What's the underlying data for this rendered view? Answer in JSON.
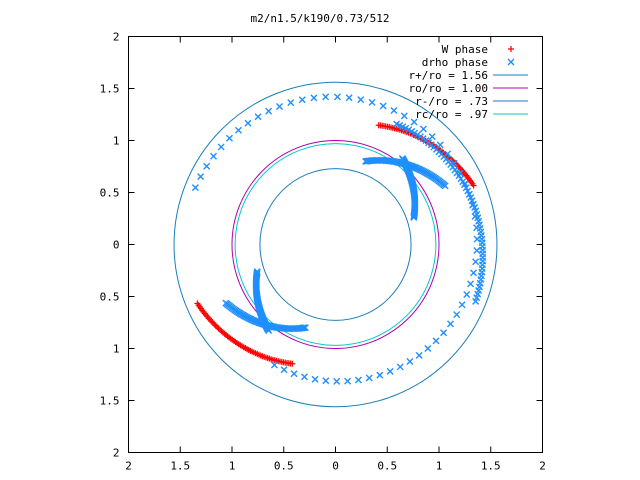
{
  "chart_data": {
    "type": "scatter",
    "title": "m2/n1.5/k190/0.73/512",
    "xlabel": "",
    "ylabel": "",
    "xlim": [
      -2,
      2
    ],
    "ylim": [
      -2,
      2
    ],
    "x_ticks": [
      -2,
      -1.5,
      -1,
      -0.5,
      0,
      0.5,
      1,
      1.5,
      2
    ],
    "y_ticks": [
      -2,
      -1.5,
      -1,
      -0.5,
      0,
      0.5,
      1,
      1.5,
      2
    ],
    "x_tick_labels": [
      "2",
      "1.5",
      "1",
      "0.5",
      "0",
      "0.5",
      "1",
      "1.5",
      "2"
    ],
    "y_tick_labels": [
      "2",
      "1.5",
      "1",
      "0.5",
      "0",
      "0.5",
      "1",
      "1.5",
      "2"
    ],
    "grid": false,
    "legend_position": "top-right",
    "series": [
      {
        "name": "W phase",
        "kind": "points",
        "marker": "plus",
        "color": "#ff0000",
        "arms": [
          {
            "r_start": 1.45,
            "theta_start_deg": 23,
            "r_end": 1.22,
            "theta_end_deg": 70
          },
          {
            "r_start": 1.45,
            "theta_start_deg": -157,
            "r_end": 1.22,
            "theta_end_deg": -110
          }
        ]
      },
      {
        "name": "drho phase",
        "kind": "points",
        "marker": "cross",
        "color": "#1f8fff",
        "arms": [
          {
            "r_start": 1.46,
            "theta_start_deg": -22,
            "r_end": 1.3,
            "theta_end_deg": 63
          },
          {
            "r_start": 0.85,
            "theta_start_deg": 70,
            "r_end": 1.2,
            "theta_end_deg": 28
          },
          {
            "r_start": 0.8,
            "theta_start_deg": 19,
            "r_end": 1.05,
            "theta_end_deg": 52
          },
          {
            "r_start": 1.46,
            "theta_start_deg": 158,
            "r_end": 1.3,
            "theta_end_deg": -117
          },
          {
            "r_start": 0.85,
            "theta_start_deg": -110,
            "r_end": 1.2,
            "theta_end_deg": -152
          },
          {
            "r_start": 0.8,
            "theta_start_deg": -161,
            "r_end": 1.05,
            "theta_end_deg": -128
          }
        ]
      },
      {
        "name": "r+/ro = 1.56",
        "kind": "circle",
        "radius": 1.56,
        "color": "#1a7fb8"
      },
      {
        "name": "ro/ro = 1.00",
        "kind": "circle",
        "radius": 1.0,
        "color": "#b000b0"
      },
      {
        "name": "r-/ro = .73",
        "kind": "circle",
        "radius": 0.73,
        "color": "#1a7fb8"
      },
      {
        "name": "rc/ro = .97",
        "kind": "circle",
        "radius": 0.97,
        "color": "#00c8d0"
      }
    ]
  }
}
